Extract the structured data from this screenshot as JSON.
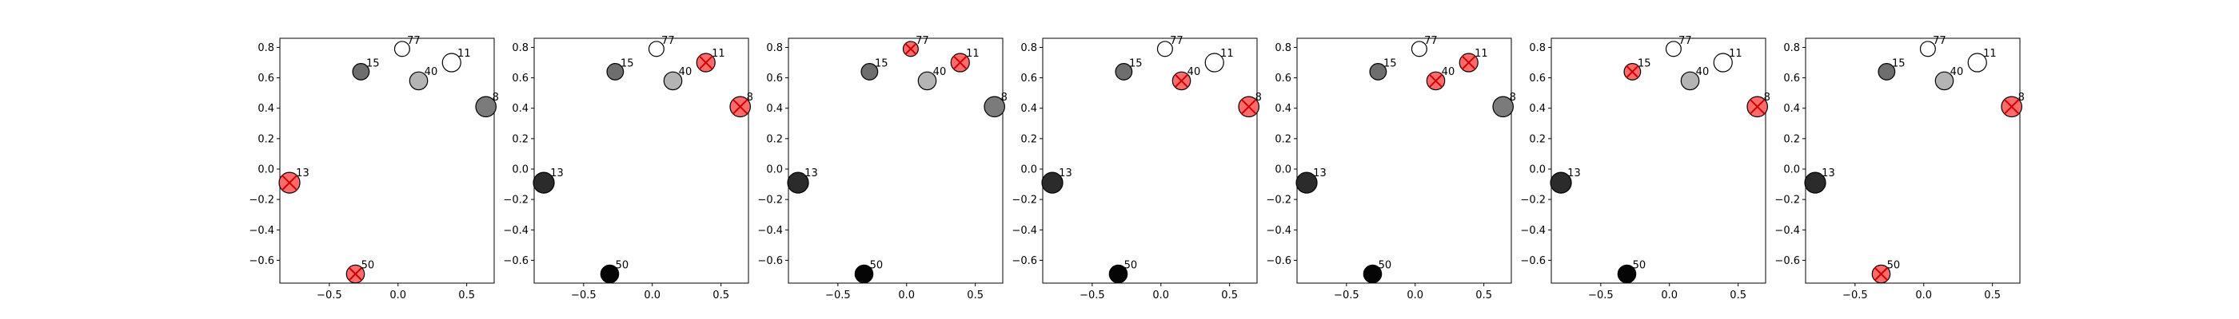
{
  "colors": {
    "highlight_fill": "#ff6b6b",
    "highlight_x": "#cc0000",
    "axis": "#000000"
  },
  "chart_data": [
    {
      "type": "scatter",
      "xlim": [
        -0.86,
        0.7
      ],
      "ylim": [
        -0.75,
        0.86
      ],
      "xticks": [
        -0.5,
        0.0,
        0.5
      ],
      "yticks": [
        -0.6,
        -0.4,
        -0.2,
        0.0,
        0.2,
        0.4,
        0.6,
        0.8
      ],
      "xtick_labels": [
        "−0.5",
        "0.0",
        "0.5"
      ],
      "ytick_labels": [
        "−0.6",
        "−0.4",
        "−0.2",
        "0.0",
        "0.2",
        "0.4",
        "0.6",
        "0.8"
      ],
      "points": [
        {
          "label": "77",
          "x": 0.03,
          "y": 0.79,
          "gray": "#ffffff",
          "size": 0.4
        },
        {
          "label": "11",
          "x": 0.39,
          "y": 0.7,
          "gray": "#ffffff",
          "size": 0.75
        },
        {
          "label": "15",
          "x": -0.27,
          "y": 0.64,
          "gray": "#6e6e6e",
          "size": 0.55
        },
        {
          "label": "40",
          "x": 0.15,
          "y": 0.58,
          "gray": "#b4b4b4",
          "size": 0.7
        },
        {
          "label": "8",
          "x": 0.64,
          "y": 0.41,
          "gray": "#7b7b7b",
          "size": 0.95
        },
        {
          "label": "13",
          "x": -0.79,
          "y": -0.09,
          "gray": "#2b2b2b",
          "size": 1.0
        },
        {
          "label": "50",
          "x": -0.31,
          "y": -0.69,
          "gray": "#050505",
          "size": 0.7
        }
      ],
      "highlighted": [
        "13",
        "50"
      ]
    },
    {
      "type": "scatter",
      "xlim": [
        -0.86,
        0.7
      ],
      "ylim": [
        -0.75,
        0.86
      ],
      "xticks": [
        -0.5,
        0.0,
        0.5
      ],
      "yticks": [
        -0.6,
        -0.4,
        -0.2,
        0.0,
        0.2,
        0.4,
        0.6,
        0.8
      ],
      "xtick_labels": [
        "−0.5",
        "0.0",
        "0.5"
      ],
      "ytick_labels": [
        "−0.6",
        "−0.4",
        "−0.2",
        "0.0",
        "0.2",
        "0.4",
        "0.6",
        "0.8"
      ],
      "points": [
        {
          "label": "77",
          "x": 0.03,
          "y": 0.79,
          "gray": "#ffffff",
          "size": 0.4
        },
        {
          "label": "11",
          "x": 0.39,
          "y": 0.7,
          "gray": "#ffffff",
          "size": 0.75
        },
        {
          "label": "15",
          "x": -0.27,
          "y": 0.64,
          "gray": "#6e6e6e",
          "size": 0.55
        },
        {
          "label": "40",
          "x": 0.15,
          "y": 0.58,
          "gray": "#b4b4b4",
          "size": 0.7
        },
        {
          "label": "8",
          "x": 0.64,
          "y": 0.41,
          "gray": "#7b7b7b",
          "size": 0.95
        },
        {
          "label": "13",
          "x": -0.79,
          "y": -0.09,
          "gray": "#2b2b2b",
          "size": 1.0
        },
        {
          "label": "50",
          "x": -0.31,
          "y": -0.69,
          "gray": "#050505",
          "size": 0.7
        }
      ],
      "highlighted": [
        "11",
        "8"
      ]
    },
    {
      "type": "scatter",
      "xlim": [
        -0.86,
        0.7
      ],
      "ylim": [
        -0.75,
        0.86
      ],
      "xticks": [
        -0.5,
        0.0,
        0.5
      ],
      "yticks": [
        -0.6,
        -0.4,
        -0.2,
        0.0,
        0.2,
        0.4,
        0.6,
        0.8
      ],
      "xtick_labels": [
        "−0.5",
        "0.0",
        "0.5"
      ],
      "ytick_labels": [
        "−0.6",
        "−0.4",
        "−0.2",
        "0.0",
        "0.2",
        "0.4",
        "0.6",
        "0.8"
      ],
      "points": [
        {
          "label": "77",
          "x": 0.03,
          "y": 0.79,
          "gray": "#ffffff",
          "size": 0.4
        },
        {
          "label": "11",
          "x": 0.39,
          "y": 0.7,
          "gray": "#ffffff",
          "size": 0.75
        },
        {
          "label": "15",
          "x": -0.27,
          "y": 0.64,
          "gray": "#6e6e6e",
          "size": 0.55
        },
        {
          "label": "40",
          "x": 0.15,
          "y": 0.58,
          "gray": "#b4b4b4",
          "size": 0.7
        },
        {
          "label": "8",
          "x": 0.64,
          "y": 0.41,
          "gray": "#7b7b7b",
          "size": 0.95
        },
        {
          "label": "13",
          "x": -0.79,
          "y": -0.09,
          "gray": "#2b2b2b",
          "size": 1.0
        },
        {
          "label": "50",
          "x": -0.31,
          "y": -0.69,
          "gray": "#050505",
          "size": 0.7
        }
      ],
      "highlighted": [
        "77",
        "11"
      ]
    },
    {
      "type": "scatter",
      "xlim": [
        -0.86,
        0.7
      ],
      "ylim": [
        -0.75,
        0.86
      ],
      "xticks": [
        -0.5,
        0.0,
        0.5
      ],
      "yticks": [
        -0.6,
        -0.4,
        -0.2,
        0.0,
        0.2,
        0.4,
        0.6,
        0.8
      ],
      "xtick_labels": [
        "−0.5",
        "0.0",
        "0.5"
      ],
      "ytick_labels": [
        "−0.6",
        "−0.4",
        "−0.2",
        "0.0",
        "0.2",
        "0.4",
        "0.6",
        "0.8"
      ],
      "points": [
        {
          "label": "77",
          "x": 0.03,
          "y": 0.79,
          "gray": "#ffffff",
          "size": 0.4
        },
        {
          "label": "11",
          "x": 0.39,
          "y": 0.7,
          "gray": "#ffffff",
          "size": 0.75
        },
        {
          "label": "15",
          "x": -0.27,
          "y": 0.64,
          "gray": "#6e6e6e",
          "size": 0.55
        },
        {
          "label": "40",
          "x": 0.15,
          "y": 0.58,
          "gray": "#b4b4b4",
          "size": 0.7
        },
        {
          "label": "8",
          "x": 0.64,
          "y": 0.41,
          "gray": "#7b7b7b",
          "size": 0.95
        },
        {
          "label": "13",
          "x": -0.79,
          "y": -0.09,
          "gray": "#2b2b2b",
          "size": 1.0
        },
        {
          "label": "50",
          "x": -0.31,
          "y": -0.69,
          "gray": "#050505",
          "size": 0.7
        }
      ],
      "highlighted": [
        "40",
        "8"
      ]
    },
    {
      "type": "scatter",
      "xlim": [
        -0.86,
        0.7
      ],
      "ylim": [
        -0.75,
        0.86
      ],
      "xticks": [
        -0.5,
        0.0,
        0.5
      ],
      "yticks": [
        -0.6,
        -0.4,
        -0.2,
        0.0,
        0.2,
        0.4,
        0.6,
        0.8
      ],
      "xtick_labels": [
        "−0.5",
        "0.0",
        "0.5"
      ],
      "ytick_labels": [
        "−0.6",
        "−0.4",
        "−0.2",
        "0.0",
        "0.2",
        "0.4",
        "0.6",
        "0.8"
      ],
      "points": [
        {
          "label": "77",
          "x": 0.03,
          "y": 0.79,
          "gray": "#ffffff",
          "size": 0.4
        },
        {
          "label": "11",
          "x": 0.39,
          "y": 0.7,
          "gray": "#ffffff",
          "size": 0.75
        },
        {
          "label": "15",
          "x": -0.27,
          "y": 0.64,
          "gray": "#6e6e6e",
          "size": 0.55
        },
        {
          "label": "40",
          "x": 0.15,
          "y": 0.58,
          "gray": "#b4b4b4",
          "size": 0.7
        },
        {
          "label": "8",
          "x": 0.64,
          "y": 0.41,
          "gray": "#7b7b7b",
          "size": 0.95
        },
        {
          "label": "13",
          "x": -0.79,
          "y": -0.09,
          "gray": "#2b2b2b",
          "size": 1.0
        },
        {
          "label": "50",
          "x": -0.31,
          "y": -0.69,
          "gray": "#050505",
          "size": 0.7
        }
      ],
      "highlighted": [
        "40",
        "11"
      ]
    },
    {
      "type": "scatter",
      "xlim": [
        -0.86,
        0.7
      ],
      "ylim": [
        -0.75,
        0.86
      ],
      "xticks": [
        -0.5,
        0.0,
        0.5
      ],
      "yticks": [
        -0.6,
        -0.4,
        -0.2,
        0.0,
        0.2,
        0.4,
        0.6,
        0.8
      ],
      "xtick_labels": [
        "−0.5",
        "0.0",
        "0.5"
      ],
      "ytick_labels": [
        "−0.6",
        "−0.4",
        "−0.2",
        "0.0",
        "0.2",
        "0.4",
        "0.6",
        "0.8"
      ],
      "points": [
        {
          "label": "77",
          "x": 0.03,
          "y": 0.79,
          "gray": "#ffffff",
          "size": 0.4
        },
        {
          "label": "11",
          "x": 0.39,
          "y": 0.7,
          "gray": "#ffffff",
          "size": 0.75
        },
        {
          "label": "15",
          "x": -0.27,
          "y": 0.64,
          "gray": "#6e6e6e",
          "size": 0.55
        },
        {
          "label": "40",
          "x": 0.15,
          "y": 0.58,
          "gray": "#b4b4b4",
          "size": 0.7
        },
        {
          "label": "8",
          "x": 0.64,
          "y": 0.41,
          "gray": "#7b7b7b",
          "size": 0.95
        },
        {
          "label": "13",
          "x": -0.79,
          "y": -0.09,
          "gray": "#2b2b2b",
          "size": 1.0
        },
        {
          "label": "50",
          "x": -0.31,
          "y": -0.69,
          "gray": "#050505",
          "size": 0.7
        }
      ],
      "highlighted": [
        "15",
        "8"
      ]
    },
    {
      "type": "scatter",
      "xlim": [
        -0.86,
        0.7
      ],
      "ylim": [
        -0.75,
        0.86
      ],
      "xticks": [
        -0.5,
        0.0,
        0.5
      ],
      "yticks": [
        -0.6,
        -0.4,
        -0.2,
        0.0,
        0.2,
        0.4,
        0.6,
        0.8
      ],
      "xtick_labels": [
        "−0.5",
        "0.0",
        "0.5"
      ],
      "ytick_labels": [
        "−0.6",
        "−0.4",
        "−0.2",
        "0.0",
        "0.2",
        "0.4",
        "0.6",
        "0.8"
      ],
      "points": [
        {
          "label": "77",
          "x": 0.03,
          "y": 0.79,
          "gray": "#ffffff",
          "size": 0.4
        },
        {
          "label": "11",
          "x": 0.39,
          "y": 0.7,
          "gray": "#ffffff",
          "size": 0.75
        },
        {
          "label": "15",
          "x": -0.27,
          "y": 0.64,
          "gray": "#6e6e6e",
          "size": 0.55
        },
        {
          "label": "40",
          "x": 0.15,
          "y": 0.58,
          "gray": "#b4b4b4",
          "size": 0.7
        },
        {
          "label": "8",
          "x": 0.64,
          "y": 0.41,
          "gray": "#7b7b7b",
          "size": 0.95
        },
        {
          "label": "13",
          "x": -0.79,
          "y": -0.09,
          "gray": "#2b2b2b",
          "size": 1.0
        },
        {
          "label": "50",
          "x": -0.31,
          "y": -0.69,
          "gray": "#050505",
          "size": 0.7
        }
      ],
      "highlighted": [
        "50",
        "8"
      ]
    }
  ]
}
